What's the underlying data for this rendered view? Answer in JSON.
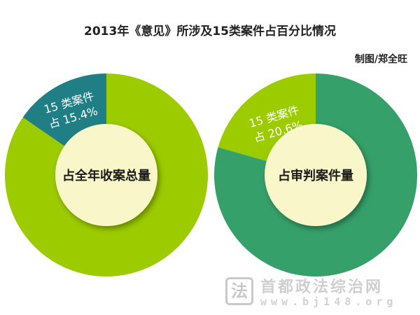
{
  "chart_data": [
    {
      "type": "pie",
      "center_label": "占全年收案总量",
      "slices": [
        {
          "label_lines": [
            "15 类案件",
            "占 15.4%"
          ],
          "value": 15.4,
          "color": "#1f7f85"
        },
        {
          "value": 84.6,
          "color": "#9ccb00"
        }
      ],
      "inner_color": "#f9f7c9"
    },
    {
      "type": "pie",
      "center_label": "占审判案件量",
      "slices": [
        {
          "label_lines": [
            "15 类案件",
            "占 20.6%"
          ],
          "value": 20.6,
          "color": "#9ccb00"
        },
        {
          "value": 79.4,
          "color": "#35a06a"
        }
      ],
      "inner_color": "#f9f7c9"
    }
  ],
  "header": {
    "title": "2013年《意见》所涉及15类案件占百分比情况",
    "credit": "制图/郑全旺"
  },
  "watermark": {
    "logo_glyph": "法",
    "name": "首都政法综治网",
    "url": "www.bj148.org"
  }
}
